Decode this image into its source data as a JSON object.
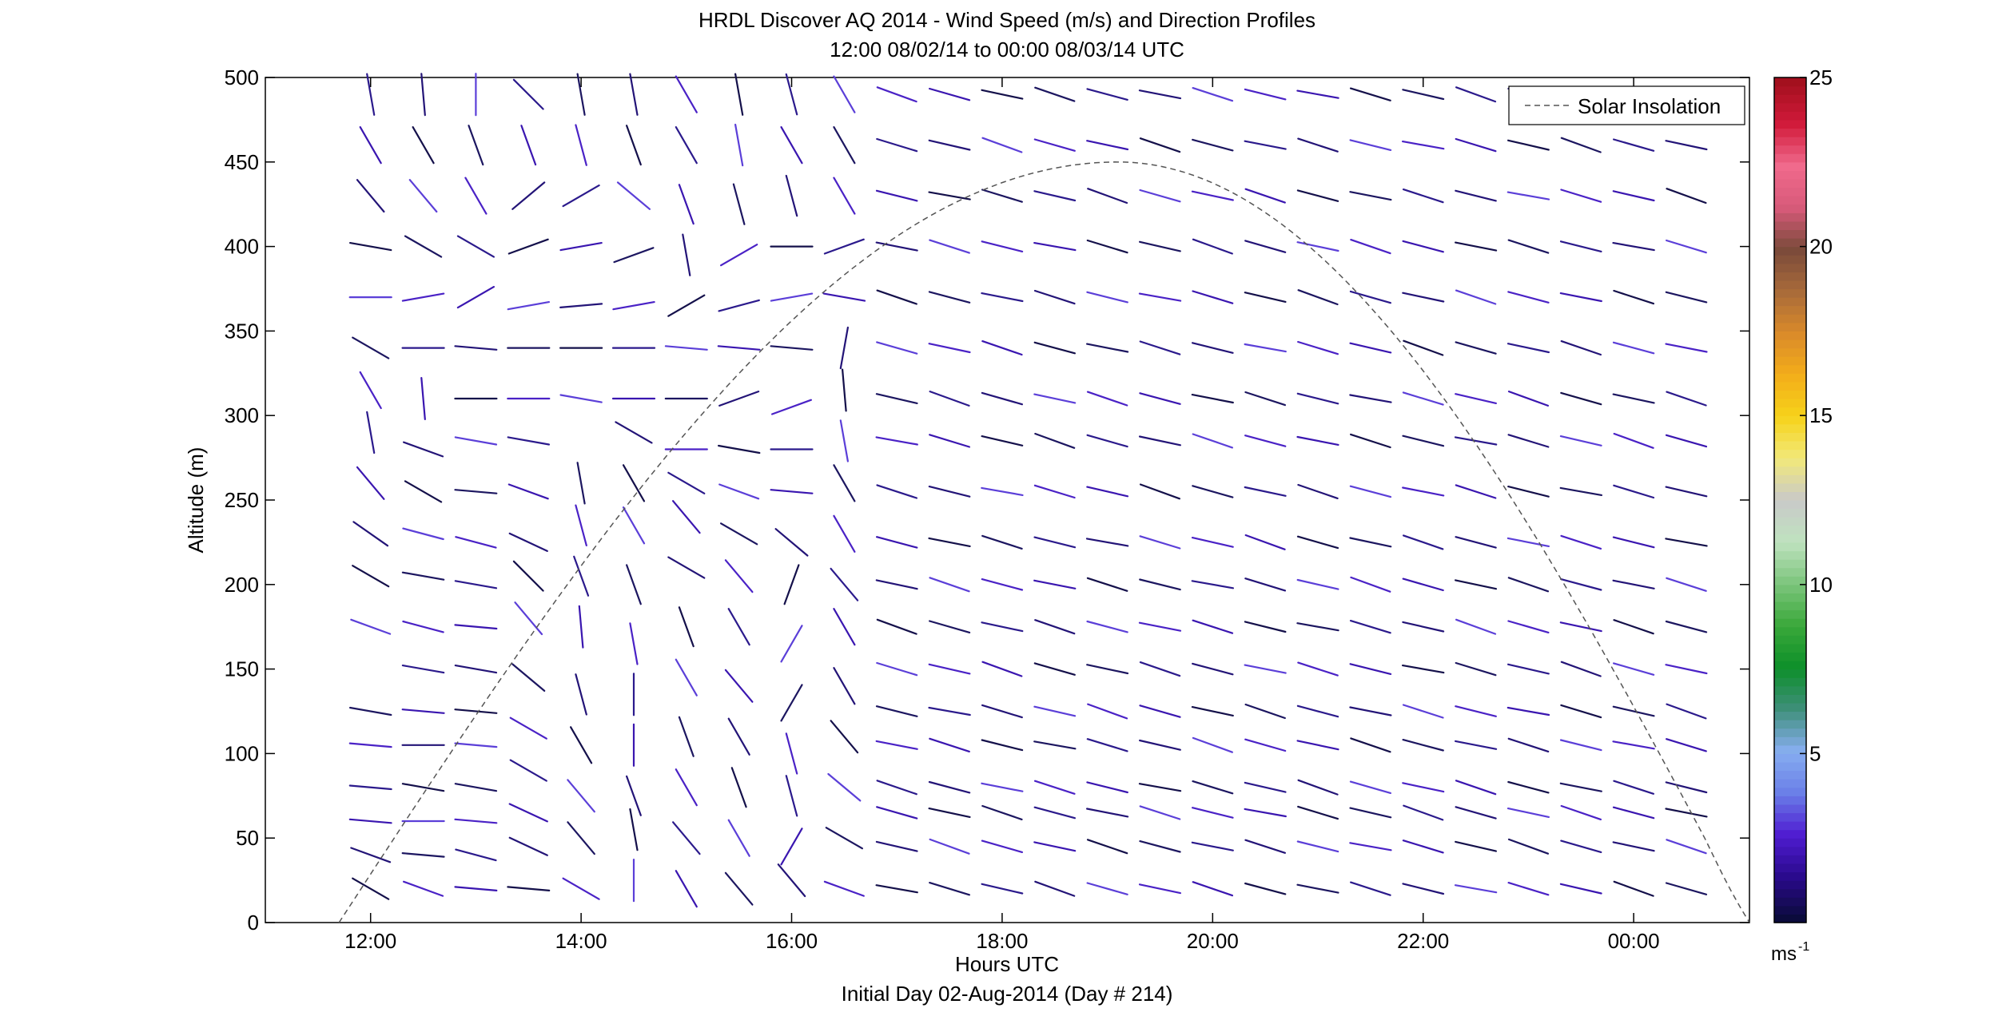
{
  "chart_data": {
    "type": "vector-field",
    "title": "HRDL Discover AQ 2014 - Wind Speed (m/s) and Direction Profiles",
    "subtitle": "12:00 08/02/14 to 00:00 08/03/14  UTC",
    "xlabel": "Hours UTC",
    "footnote": "Initial Day 02-Aug-2014 (Day # 214)",
    "ylabel": "Altitude (m)",
    "x_tick_labels": [
      "12:00",
      "14:00",
      "16:00",
      "18:00",
      "20:00",
      "22:00",
      "00:00"
    ],
    "x_tick_hours": [
      12,
      14,
      16,
      18,
      20,
      22,
      24
    ],
    "xlim_hours": [
      11,
      25.1
    ],
    "ylim": [
      0,
      500
    ],
    "y_ticks": [
      0,
      50,
      100,
      150,
      200,
      250,
      300,
      350,
      400,
      450,
      500
    ],
    "colorbar": {
      "range": [
        0,
        25
      ],
      "ticks": [
        5,
        10,
        15,
        20,
        25
      ],
      "unit": "ms",
      "unit_exp": "-1",
      "colormap": [
        "#0b0b3c",
        "#2a0a8c",
        "#4f1cd1",
        "#6a7fe8",
        "#87aef0",
        "#3f8f7a",
        "#0d8f2a",
        "#3aa83a",
        "#7cc57c",
        "#bfe2bf",
        "#c9c9c9",
        "#f2e97a",
        "#f6d21a",
        "#f3ad1a",
        "#d98a2a",
        "#a86a3a",
        "#7a4a3a",
        "#d85a7a",
        "#f06a8c",
        "#d11a3a",
        "#a3101e"
      ]
    },
    "legend": {
      "label": "Solar Insolation",
      "placement": "top-right"
    },
    "solar_insolation": {
      "peak_hour": 19.1,
      "peak_altitude_equiv": 450,
      "zero_hours": [
        11.7,
        25.1
      ],
      "style": "dashed"
    },
    "series": [
      {
        "hour": 12.0,
        "speed": 3.0,
        "altitudes": [
          20,
          40,
          60,
          80,
          105,
          125,
          175,
          205,
          230,
          260,
          290,
          315,
          340,
          370,
          400,
          430,
          460,
          490
        ],
        "directions": [
          300,
          290,
          275,
          275,
          275,
          280,
          290,
          300,
          305,
          320,
          350,
          330,
          300,
          270,
          280,
          320,
          330,
          350
        ]
      },
      {
        "hour": 12.5,
        "speed": 3.0,
        "altitudes": [
          20,
          40,
          60,
          80,
          105,
          125,
          150,
          175,
          205,
          230,
          255,
          280,
          310,
          340,
          370,
          400,
          430,
          460,
          490
        ],
        "directions": [
          290,
          275,
          270,
          280,
          270,
          275,
          280,
          285,
          280,
          285,
          300,
          290,
          355,
          270,
          260,
          300,
          320,
          330,
          355
        ]
      },
      {
        "hour": 13.0,
        "speed": 3.0,
        "altitudes": [
          20,
          40,
          60,
          80,
          105,
          125,
          150,
          175,
          200,
          225,
          255,
          285,
          310,
          340,
          370,
          400,
          430,
          460,
          490
        ],
        "directions": [
          275,
          285,
          275,
          280,
          275,
          275,
          280,
          275,
          280,
          285,
          275,
          280,
          270,
          275,
          240,
          300,
          330,
          340,
          360
        ]
      },
      {
        "hour": 13.5,
        "speed": 3.0,
        "altitudes": [
          20,
          45,
          65,
          90,
          115,
          145,
          180,
          205,
          225,
          255,
          285,
          310,
          340,
          365,
          400,
          430,
          460,
          490
        ],
        "directions": [
          275,
          295,
          295,
          300,
          300,
          310,
          320,
          315,
          295,
          290,
          280,
          270,
          270,
          260,
          250,
          230,
          340,
          315
        ]
      },
      {
        "hour": 14.0,
        "speed": 3.0,
        "altitudes": [
          20,
          50,
          75,
          105,
          135,
          175,
          205,
          235,
          260,
          310,
          340,
          365,
          400,
          430,
          460,
          490
        ],
        "directions": [
          300,
          320,
          320,
          330,
          345,
          355,
          340,
          345,
          350,
          280,
          270,
          265,
          260,
          240,
          345,
          350
        ]
      },
      {
        "hour": 14.5,
        "speed": 3.0,
        "altitudes": [
          25,
          55,
          75,
          105,
          135,
          165,
          200,
          235,
          260,
          290,
          310,
          340,
          365,
          395,
          430,
          460,
          490
        ],
        "directions": [
          360,
          350,
          340,
          360,
          360,
          350,
          340,
          330,
          330,
          300,
          270,
          270,
          260,
          250,
          310,
          340,
          350
        ]
      },
      {
        "hour": 15.0,
        "speed": 3.0,
        "altitudes": [
          20,
          50,
          80,
          110,
          145,
          175,
          210,
          240,
          260,
          280,
          310,
          340,
          365,
          395,
          425,
          460,
          490
        ],
        "directions": [
          330,
          320,
          330,
          340,
          330,
          340,
          300,
          320,
          300,
          270,
          270,
          275,
          240,
          350,
          340,
          330,
          330
        ]
      },
      {
        "hour": 15.5,
        "speed": 3.0,
        "altitudes": [
          20,
          50,
          80,
          110,
          140,
          175,
          205,
          230,
          255,
          280,
          310,
          340,
          365,
          395,
          425,
          460,
          490
        ],
        "directions": [
          320,
          330,
          340,
          330,
          320,
          330,
          320,
          300,
          290,
          280,
          250,
          275,
          255,
          240,
          345,
          350,
          350
        ]
      },
      {
        "hour": 16.0,
        "speed": 3.0,
        "altitudes": [
          25,
          45,
          75,
          100,
          130,
          165,
          200,
          225,
          255,
          280,
          305,
          340,
          370,
          400,
          430,
          460,
          490
        ],
        "directions": [
          320,
          30,
          345,
          345,
          30,
          30,
          20,
          310,
          275,
          270,
          250,
          275,
          260,
          270,
          345,
          330,
          345
        ]
      },
      {
        "hour": 16.5,
        "speed": 3.0,
        "altitudes": [
          20,
          50,
          80,
          110,
          140,
          175,
          200,
          230,
          260,
          285,
          315,
          340,
          370,
          400,
          430,
          460,
          490
        ],
        "directions": [
          290,
          300,
          310,
          320,
          330,
          330,
          320,
          330,
          330,
          350,
          355,
          10,
          280,
          250,
          330,
          330,
          330
        ]
      }
    ],
    "regime_afternoon": {
      "hours": [
        17.0,
        17.5,
        18.0,
        18.5,
        19.0,
        19.5,
        20.0,
        20.5,
        21.0,
        21.5,
        22.0,
        22.5,
        23.0,
        23.5,
        24.0,
        24.5
      ],
      "altitudes": [
        20,
        45,
        65,
        80,
        105,
        125,
        150,
        175,
        200,
        225,
        255,
        285,
        310,
        340,
        370,
        400,
        430,
        460,
        490
      ],
      "direction_deg": 285,
      "speed": 3.0
    }
  }
}
